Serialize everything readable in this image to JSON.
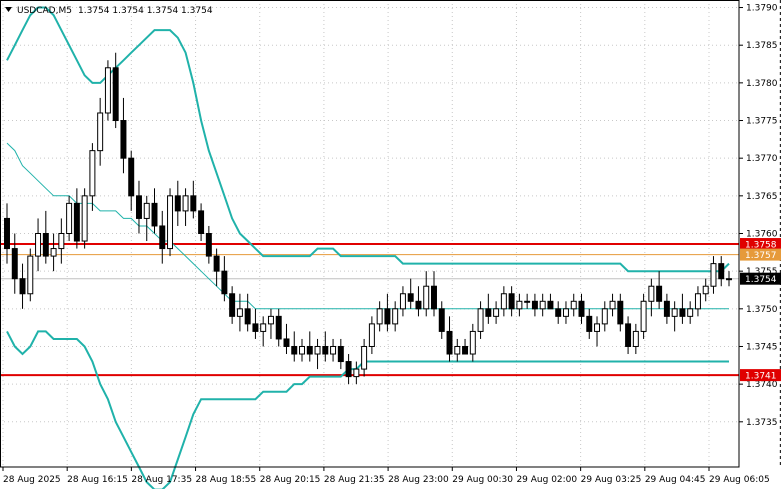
{
  "header": {
    "symbol_label": "USDCAD,M5",
    "ohlc_label": "1.3754 1.3754 1.3754 1.3754"
  },
  "colors": {
    "background": "#ffffff",
    "grid": "#c8c8c8",
    "candle": "#000000",
    "bollinger": "#20b2aa",
    "support_resistance": "#e00000",
    "level_1757": "#e69a3a",
    "current_price_bg": "#000000",
    "crosshair": "#000000"
  },
  "chart_data": {
    "type": "candlestick",
    "ylim": [
      1.3729,
      1.3791
    ],
    "y_ticks": [
      "1.3790",
      "1.3785",
      "1.3780",
      "1.3775",
      "1.3770",
      "1.3765",
      "1.3760",
      "1.3755",
      "1.3750",
      "1.3745",
      "1.3740",
      "1.3735"
    ],
    "x_ticks": [
      "28 Aug 2025",
      "28 Aug 16:15",
      "28 Aug 17:35",
      "28 Aug 18:55",
      "28 Aug 20:15",
      "28 Aug 21:35",
      "28 Aug 23:00",
      "29 Aug 00:30",
      "29 Aug 02:00",
      "29 Aug 03:25",
      "29 Aug 04:45",
      "29 Aug 06:05"
    ],
    "horizontal_levels": [
      {
        "label": "1.3758",
        "value": 1.37586,
        "color": "#e00000"
      },
      {
        "label": "1.3757",
        "value": 1.37572,
        "color": "#e69a3a"
      },
      {
        "label": "1.3741",
        "value": 1.37412,
        "color": "#e00000"
      }
    ],
    "current_price": {
      "label": "1.3754",
      "value": 1.3754
    },
    "crosshair_candle_index": 100,
    "candles": [
      [
        1.3762,
        1.3764,
        1.3756,
        1.3758
      ],
      [
        1.3758,
        1.376,
        1.3752,
        1.3754
      ],
      [
        1.3754,
        1.3756,
        1.375,
        1.3752
      ],
      [
        1.3752,
        1.3758,
        1.3751,
        1.3757
      ],
      [
        1.3757,
        1.3762,
        1.3755,
        1.376
      ],
      [
        1.376,
        1.3763,
        1.3756,
        1.3757
      ],
      [
        1.3757,
        1.376,
        1.3755,
        1.3758
      ],
      [
        1.3758,
        1.3762,
        1.3756,
        1.376
      ],
      [
        1.376,
        1.3765,
        1.3759,
        1.3764
      ],
      [
        1.3764,
        1.3766,
        1.3758,
        1.3759
      ],
      [
        1.3759,
        1.3766,
        1.3758,
        1.3765
      ],
      [
        1.3765,
        1.3772,
        1.3763,
        1.3771
      ],
      [
        1.3771,
        1.3778,
        1.3769,
        1.3776
      ],
      [
        1.3776,
        1.3783,
        1.3775,
        1.3782
      ],
      [
        1.3782,
        1.3784,
        1.3774,
        1.3775
      ],
      [
        1.3775,
        1.3778,
        1.3768,
        1.377
      ],
      [
        1.377,
        1.3771,
        1.3763,
        1.3765
      ],
      [
        1.3765,
        1.3767,
        1.376,
        1.3762
      ],
      [
        1.3762,
        1.3765,
        1.3759,
        1.3764
      ],
      [
        1.3764,
        1.3766,
        1.376,
        1.3761
      ],
      [
        1.3761,
        1.3763,
        1.3756,
        1.3758
      ],
      [
        1.3758,
        1.3766,
        1.3757,
        1.3765
      ],
      [
        1.3765,
        1.3767,
        1.3761,
        1.3763
      ],
      [
        1.3763,
        1.3766,
        1.3761,
        1.3765
      ],
      [
        1.3765,
        1.3767,
        1.3762,
        1.3763
      ],
      [
        1.3763,
        1.3764,
        1.3759,
        1.376
      ],
      [
        1.376,
        1.3761,
        1.3756,
        1.3757
      ],
      [
        1.3757,
        1.3758,
        1.3753,
        1.3755
      ],
      [
        1.3755,
        1.3757,
        1.3751,
        1.3752
      ],
      [
        1.3752,
        1.3753,
        1.3748,
        1.3749
      ],
      [
        1.3749,
        1.3752,
        1.3747,
        1.375
      ],
      [
        1.375,
        1.3752,
        1.3747,
        1.3748
      ],
      [
        1.3748,
        1.375,
        1.3746,
        1.3747
      ],
      [
        1.3747,
        1.3749,
        1.3745,
        1.3748
      ],
      [
        1.3748,
        1.375,
        1.3746,
        1.3749
      ],
      [
        1.3749,
        1.375,
        1.3745,
        1.3746
      ],
      [
        1.3746,
        1.3748,
        1.3744,
        1.3745
      ],
      [
        1.3745,
        1.3747,
        1.3743,
        1.3744
      ],
      [
        1.3744,
        1.3746,
        1.3743,
        1.3745
      ],
      [
        1.3745,
        1.3747,
        1.3743,
        1.3744
      ],
      [
        1.3744,
        1.3746,
        1.3742,
        1.3745
      ],
      [
        1.3745,
        1.3747,
        1.3743,
        1.3744
      ],
      [
        1.3744,
        1.3746,
        1.3743,
        1.3745
      ],
      [
        1.3745,
        1.3746,
        1.3742,
        1.3743
      ],
      [
        1.3743,
        1.3744,
        1.374,
        1.3741
      ],
      [
        1.3741,
        1.3743,
        1.374,
        1.3742
      ],
      [
        1.3742,
        1.3746,
        1.3741,
        1.3745
      ],
      [
        1.3745,
        1.3749,
        1.3744,
        1.3748
      ],
      [
        1.3748,
        1.3751,
        1.3747,
        1.375
      ],
      [
        1.375,
        1.3752,
        1.3747,
        1.3748
      ],
      [
        1.3748,
        1.3751,
        1.3747,
        1.375
      ],
      [
        1.375,
        1.3753,
        1.3749,
        1.3752
      ],
      [
        1.3752,
        1.3754,
        1.375,
        1.3751
      ],
      [
        1.3751,
        1.3753,
        1.3749,
        1.375
      ],
      [
        1.375,
        1.3755,
        1.3749,
        1.3753
      ],
      [
        1.3753,
        1.3755,
        1.3749,
        1.375
      ],
      [
        1.375,
        1.3751,
        1.3746,
        1.3747
      ],
      [
        1.3747,
        1.3749,
        1.3743,
        1.3744
      ],
      [
        1.3744,
        1.3746,
        1.3743,
        1.3745
      ],
      [
        1.3745,
        1.3746,
        1.3744,
        1.3744
      ],
      [
        1.3744,
        1.3748,
        1.3743,
        1.3747
      ],
      [
        1.3747,
        1.3751,
        1.3746,
        1.375
      ],
      [
        1.375,
        1.3752,
        1.3748,
        1.3749
      ],
      [
        1.3749,
        1.3751,
        1.3748,
        1.375
      ],
      [
        1.375,
        1.3753,
        1.3749,
        1.3752
      ],
      [
        1.3752,
        1.3753,
        1.3749,
        1.375
      ],
      [
        1.375,
        1.3752,
        1.3749,
        1.3751
      ],
      [
        1.3751,
        1.3752,
        1.375,
        1.3751
      ],
      [
        1.3751,
        1.3752,
        1.3749,
        1.375
      ],
      [
        1.375,
        1.3752,
        1.3749,
        1.3751
      ],
      [
        1.3751,
        1.3752,
        1.375,
        1.375
      ],
      [
        1.375,
        1.3751,
        1.3748,
        1.3749
      ],
      [
        1.3749,
        1.3751,
        1.3748,
        1.375
      ],
      [
        1.375,
        1.3752,
        1.3749,
        1.3751
      ],
      [
        1.3751,
        1.3752,
        1.3748,
        1.3749
      ],
      [
        1.3749,
        1.375,
        1.3746,
        1.3747
      ],
      [
        1.3747,
        1.3749,
        1.3745,
        1.3748
      ],
      [
        1.3748,
        1.3751,
        1.3747,
        1.375
      ],
      [
        1.375,
        1.3752,
        1.3749,
        1.3751
      ],
      [
        1.3751,
        1.3752,
        1.3747,
        1.3748
      ],
      [
        1.3748,
        1.3749,
        1.3744,
        1.3745
      ],
      [
        1.3745,
        1.3748,
        1.3744,
        1.3747
      ],
      [
        1.3747,
        1.3752,
        1.3746,
        1.3751
      ],
      [
        1.3751,
        1.3754,
        1.3749,
        1.3753
      ],
      [
        1.3753,
        1.3755,
        1.375,
        1.3751
      ],
      [
        1.3751,
        1.3752,
        1.3748,
        1.3749
      ],
      [
        1.3749,
        1.3751,
        1.3747,
        1.375
      ],
      [
        1.375,
        1.3752,
        1.3748,
        1.3749
      ],
      [
        1.3749,
        1.3751,
        1.3748,
        1.375
      ],
      [
        1.375,
        1.3753,
        1.3749,
        1.3752
      ],
      [
        1.3752,
        1.3754,
        1.3751,
        1.3753
      ],
      [
        1.3753,
        1.3757,
        1.3752,
        1.3756
      ],
      [
        1.3756,
        1.3757,
        1.3753,
        1.3754
      ],
      [
        1.3754,
        1.3755,
        1.3753,
        1.3754
      ]
    ],
    "bb_upper": [
      1.3783,
      1.3785,
      1.3787,
      1.3789,
      1.379,
      1.379,
      1.3789,
      1.3787,
      1.3785,
      1.3783,
      1.3781,
      1.378,
      1.378,
      1.3781,
      1.3782,
      1.3783,
      1.3784,
      1.3785,
      1.3786,
      1.3787,
      1.3787,
      1.3787,
      1.3786,
      1.3784,
      1.378,
      1.3775,
      1.3771,
      1.3768,
      1.3765,
      1.3762,
      1.376,
      1.3759,
      1.3758,
      1.3757,
      1.3757,
      1.3757,
      1.3757,
      1.3757,
      1.3757,
      1.3757,
      1.3758,
      1.3758,
      1.3758,
      1.3757,
      1.3757,
      1.3757,
      1.3757,
      1.3757,
      1.3757,
      1.3757,
      1.3757,
      1.3756,
      1.3756,
      1.3756,
      1.3756,
      1.3756,
      1.3756,
      1.3756,
      1.3756,
      1.3756,
      1.3756,
      1.3756,
      1.3756,
      1.3756,
      1.3756,
      1.3756,
      1.3756,
      1.3756,
      1.3756,
      1.3756,
      1.3756,
      1.3756,
      1.3756,
      1.3756,
      1.3756,
      1.3756,
      1.3756,
      1.3756,
      1.3756,
      1.3756,
      1.3755,
      1.3755,
      1.3755,
      1.3755,
      1.3755,
      1.3755,
      1.3755,
      1.3755,
      1.3755,
      1.3755,
      1.3755,
      1.3755,
      1.3755,
      1.3756
    ],
    "bb_middle": [
      1.3772,
      1.3771,
      1.3769,
      1.3768,
      1.3767,
      1.3766,
      1.3765,
      1.3765,
      1.3765,
      1.3764,
      1.3764,
      1.3764,
      1.3763,
      1.3763,
      1.3763,
      1.3762,
      1.3762,
      1.3761,
      1.3761,
      1.376,
      1.3759,
      1.3759,
      1.3758,
      1.3757,
      1.3756,
      1.3755,
      1.3754,
      1.3753,
      1.3752,
      1.3751,
      1.3751,
      1.3751,
      1.375,
      1.375,
      1.375,
      1.375,
      1.375,
      1.375,
      1.375,
      1.375,
      1.375,
      1.375,
      1.375,
      1.375,
      1.375,
      1.375,
      1.375,
      1.375,
      1.375,
      1.375,
      1.375,
      1.375,
      1.375,
      1.375,
      1.375,
      1.375,
      1.375,
      1.375,
      1.375,
      1.375,
      1.375,
      1.375,
      1.375,
      1.375,
      1.375,
      1.375,
      1.375,
      1.375,
      1.375,
      1.375,
      1.375,
      1.375,
      1.375,
      1.375,
      1.375,
      1.375,
      1.375,
      1.375,
      1.375,
      1.375,
      1.375,
      1.375,
      1.375,
      1.375,
      1.375,
      1.375,
      1.375,
      1.375,
      1.375,
      1.375,
      1.375,
      1.375,
      1.375,
      1.375
    ],
    "bb_lower": [
      1.3747,
      1.3745,
      1.3744,
      1.3745,
      1.3747,
      1.3747,
      1.3746,
      1.3746,
      1.3746,
      1.3746,
      1.3745,
      1.3743,
      1.374,
      1.3738,
      1.3735,
      1.3733,
      1.3731,
      1.3729,
      1.3727,
      1.3726,
      1.3726,
      1.3727,
      1.373,
      1.3733,
      1.3736,
      1.3738,
      1.3738,
      1.3738,
      1.3738,
      1.3738,
      1.3738,
      1.3738,
      1.3738,
      1.3739,
      1.3739,
      1.3739,
      1.3739,
      1.374,
      1.374,
      1.3741,
      1.3741,
      1.3741,
      1.3741,
      1.3741,
      1.3742,
      1.3742,
      1.3743,
      1.3743,
      1.3743,
      1.3743,
      1.3743,
      1.3743,
      1.3743,
      1.3743,
      1.3743,
      1.3743,
      1.3743,
      1.3743,
      1.3743,
      1.3743,
      1.3743,
      1.3743,
      1.3743,
      1.3743,
      1.3743,
      1.3743,
      1.3743,
      1.3743,
      1.3743,
      1.3743,
      1.3743,
      1.3743,
      1.3743,
      1.3743,
      1.3743,
      1.3743,
      1.3743,
      1.3743,
      1.3743,
      1.3743,
      1.3743,
      1.3743,
      1.3743,
      1.3743,
      1.3743,
      1.3743,
      1.3743,
      1.3743,
      1.3743,
      1.3743,
      1.3743,
      1.3743,
      1.3743,
      1.3743
    ]
  }
}
